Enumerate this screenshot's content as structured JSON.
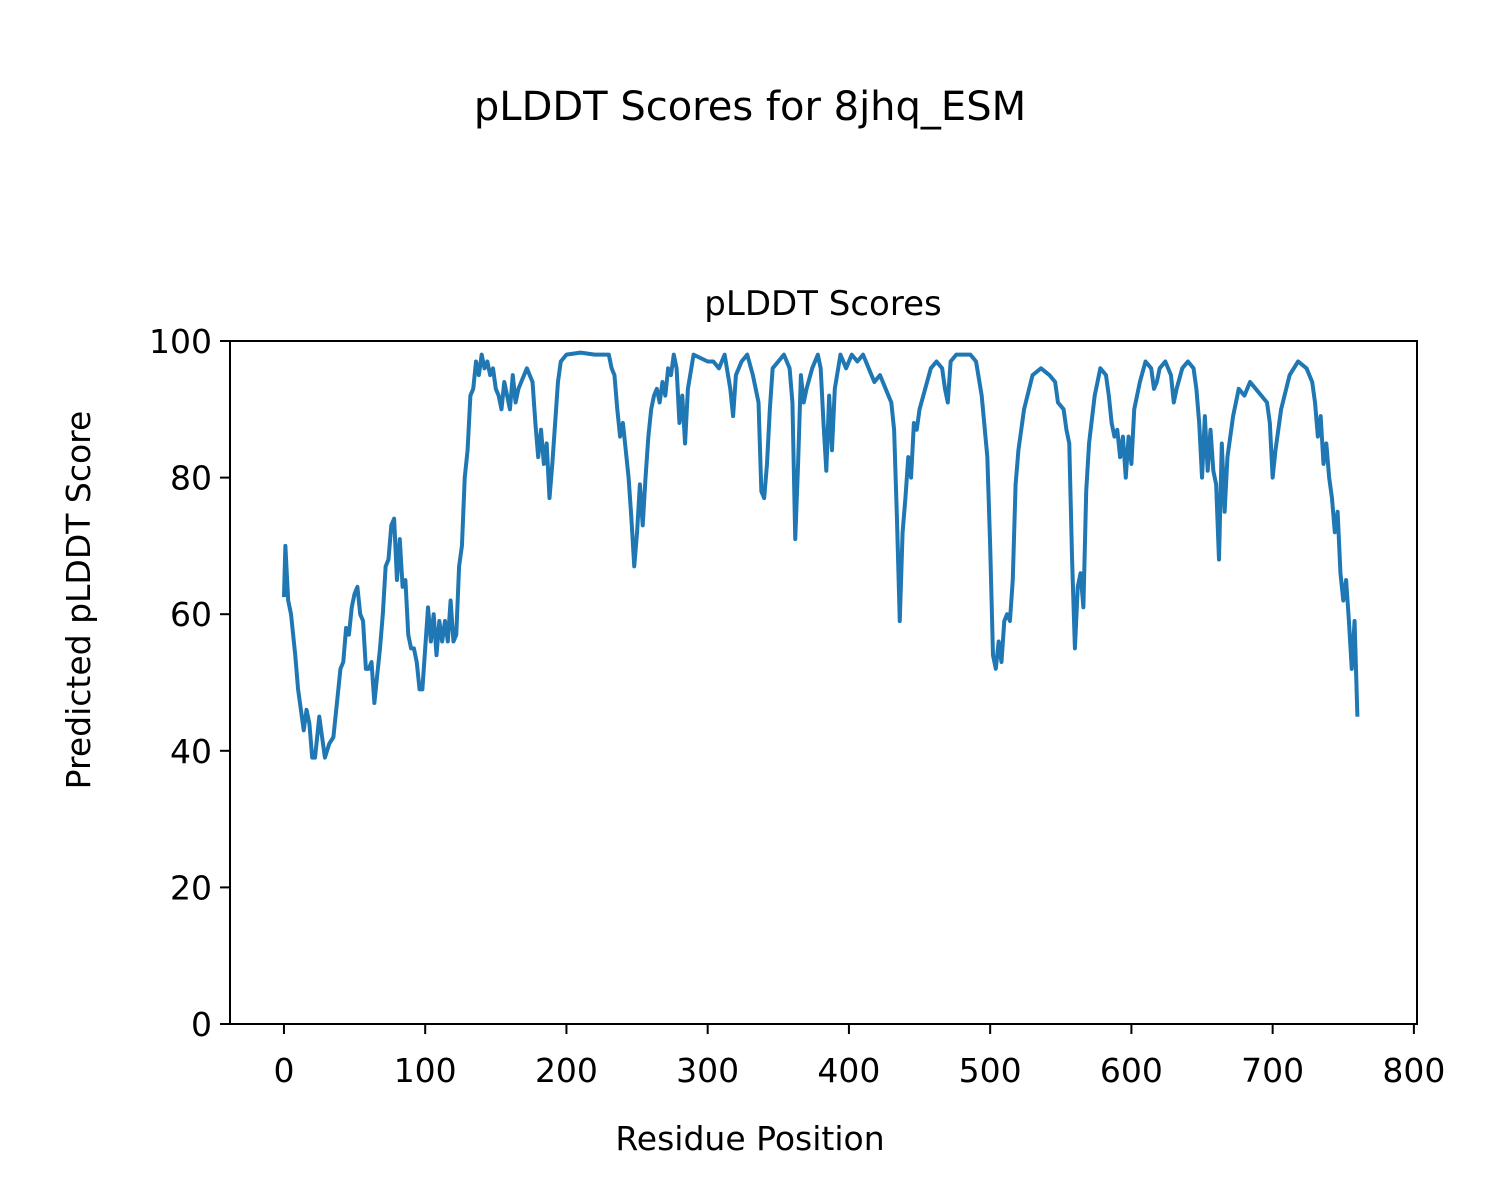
{
  "chart_data": {
    "type": "line",
    "suptitle": "pLDDT Scores for 8jhq_ESM",
    "title": "pLDDT Scores",
    "xlabel": "Residue Position",
    "ylabel": "Predicted pLDDT Score",
    "color": "#1f77b4",
    "xlim": [
      -38.2,
      802.2
    ],
    "ylim": [
      0,
      100
    ],
    "xticks": [
      0,
      100,
      200,
      300,
      400,
      500,
      600,
      700,
      800
    ],
    "yticks": [
      0,
      20,
      40,
      60,
      80,
      100
    ],
    "x": [
      0,
      1,
      3,
      5,
      8,
      10,
      12,
      14,
      16,
      18,
      20,
      22,
      25,
      27,
      29,
      32,
      35,
      38,
      40,
      42,
      44,
      46,
      48,
      50,
      52,
      54,
      56,
      58,
      60,
      62,
      64,
      66,
      68,
      70,
      72,
      74,
      76,
      78,
      80,
      82,
      84,
      86,
      88,
      90,
      92,
      94,
      96,
      98,
      100,
      102,
      104,
      106,
      108,
      110,
      112,
      114,
      116,
      118,
      120,
      122,
      124,
      126,
      128,
      130,
      132,
      134,
      136,
      138,
      140,
      142,
      144,
      146,
      148,
      150,
      152,
      154,
      156,
      158,
      160,
      162,
      164,
      166,
      168,
      172,
      174,
      176,
      178,
      180,
      182,
      184,
      186,
      188,
      190,
      192,
      194,
      196,
      200,
      210,
      220,
      230,
      232,
      234,
      236,
      238,
      240,
      242,
      244,
      246,
      248,
      250,
      252,
      254,
      256,
      258,
      260,
      262,
      264,
      266,
      268,
      270,
      272,
      274,
      276,
      278,
      280,
      282,
      284,
      286,
      290,
      300,
      304,
      308,
      312,
      316,
      318,
      320,
      324,
      328,
      332,
      334,
      336,
      338,
      340,
      342,
      344,
      346,
      350,
      354,
      358,
      360,
      362,
      364,
      366,
      368,
      370,
      374,
      378,
      380,
      382,
      384,
      386,
      388,
      390,
      394,
      398,
      402,
      406,
      410,
      414,
      418,
      422,
      426,
      430,
      432,
      434,
      436,
      438,
      440,
      442,
      444,
      446,
      448,
      450,
      454,
      458,
      462,
      466,
      468,
      470,
      472,
      476,
      486,
      490,
      494,
      498,
      500,
      502,
      504,
      506,
      508,
      510,
      512,
      514,
      516,
      518,
      520,
      524,
      530,
      536,
      542,
      546,
      548,
      552,
      554,
      556,
      558,
      560,
      562,
      564,
      566,
      568,
      570,
      574,
      578,
      582,
      584,
      586,
      588,
      590,
      592,
      594,
      596,
      598,
      600,
      602,
      606,
      610,
      614,
      616,
      618,
      620,
      624,
      628,
      630,
      632,
      636,
      640,
      644,
      646,
      648,
      650,
      652,
      654,
      656,
      658,
      660,
      662,
      664,
      666,
      668,
      670,
      672,
      676,
      680,
      684,
      688,
      692,
      696,
      698,
      700,
      702,
      706,
      712,
      718,
      724,
      728,
      730,
      732,
      734,
      736,
      738,
      740,
      742,
      744,
      746,
      748,
      750,
      752,
      754,
      756,
      758,
      760
    ],
    "values": [
      62.5,
      70,
      62,
      60,
      54,
      49,
      46,
      43,
      46,
      44,
      39,
      39,
      45,
      42,
      39,
      41,
      42,
      48,
      52,
      53,
      58,
      57,
      61,
      63,
      64,
      60,
      59,
      52,
      52,
      53,
      47,
      51,
      55,
      60,
      67,
      68,
      73,
      74,
      65,
      71,
      64,
      65,
      57,
      55,
      55,
      53,
      49,
      49,
      55,
      61,
      56,
      60,
      54,
      59,
      56,
      59,
      56,
      62,
      56,
      57,
      67,
      70,
      80,
      84,
      92,
      93,
      97,
      95,
      98,
      96,
      97,
      95,
      96,
      93,
      92,
      90,
      94,
      92,
      90,
      95,
      91,
      93,
      94,
      96,
      95,
      94,
      88,
      83,
      87,
      82,
      85,
      77,
      82,
      88,
      94,
      97,
      98,
      98.3,
      98,
      98,
      96,
      95,
      90,
      86,
      88,
      84,
      80,
      74,
      67,
      72,
      79,
      73,
      80,
      86,
      90,
      92,
      93,
      91,
      94,
      92,
      96,
      95,
      98,
      96,
      88,
      92,
      85,
      93,
      98,
      97,
      97,
      96,
      98,
      93,
      89,
      95,
      97,
      98,
      95,
      93,
      91,
      78,
      77,
      82,
      90,
      96,
      97,
      98,
      96,
      91,
      71,
      82,
      95,
      91,
      93,
      96,
      98,
      96,
      88,
      81,
      92,
      84,
      93,
      98,
      96,
      98,
      97,
      98,
      96,
      94,
      95,
      93,
      91,
      87,
      74,
      59,
      72,
      77,
      83,
      80,
      88,
      87,
      90,
      93,
      96,
      97,
      96,
      93,
      91,
      97,
      98,
      98,
      97,
      92,
      83,
      70,
      54,
      52,
      56,
      53,
      59,
      60,
      59,
      65,
      79,
      84,
      90,
      95,
      96,
      95,
      94,
      91,
      90,
      87,
      85,
      68,
      55,
      64,
      66,
      61,
      78,
      85,
      92,
      96,
      95,
      92,
      88,
      86,
      87,
      83,
      86,
      80,
      86,
      82,
      90,
      94,
      97,
      96,
      93,
      94,
      96,
      97,
      95,
      91,
      93,
      96,
      97,
      96,
      93,
      88,
      80,
      89,
      81,
      87,
      81,
      79,
      68,
      85,
      75,
      83,
      86,
      89,
      93,
      92,
      94,
      93,
      92,
      91,
      88,
      80,
      84,
      90,
      95,
      97,
      96,
      94,
      91,
      86,
      89,
      82,
      85,
      80,
      77,
      72,
      75,
      66,
      62,
      65,
      59,
      52,
      59,
      45
    ]
  }
}
